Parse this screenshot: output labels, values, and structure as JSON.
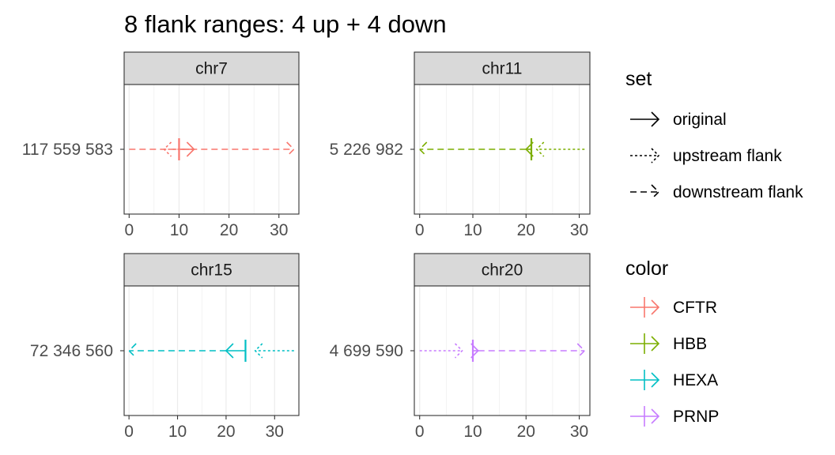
{
  "title": "8 flank ranges: 4 up + 4 down",
  "chart_data": {
    "type": "line",
    "title": "8 flank ranges: 4 up + 4 down",
    "xlabel": "",
    "ylabel": "",
    "x_ticks": [
      0,
      10,
      20,
      30
    ],
    "grid": true,
    "legend_placement": "right",
    "legend_sets": {
      "title": "set",
      "items": [
        {
          "label": "original",
          "linetype": "solid"
        },
        {
          "label": "upstream flank",
          "linetype": "dotted"
        },
        {
          "label": "downstream flank",
          "linetype": "dashed"
        }
      ]
    },
    "legend_colors": {
      "title": "color",
      "items": [
        {
          "label": "CFTR",
          "color": "#F8766D"
        },
        {
          "label": "HBB",
          "color": "#7CAE00"
        },
        {
          "label": "HEXA",
          "color": "#00BFC4"
        },
        {
          "label": "PRNP",
          "color": "#C77CFF"
        }
      ]
    },
    "panels": [
      {
        "strip": "chr7",
        "y_label": "117 559 583",
        "gene": "CFTR",
        "color": "#F8766D",
        "xlim": [
          -1,
          34
        ],
        "segments": [
          {
            "set": "original",
            "start": 10,
            "end": 13
          },
          {
            "set": "upstream flank",
            "start": 13,
            "end": 7
          },
          {
            "set": "downstream flank",
            "start": 0,
            "end": 33
          }
        ]
      },
      {
        "strip": "chr11",
        "y_label": "5 226 982",
        "gene": "HBB",
        "color": "#7CAE00",
        "xlim": [
          -1,
          32
        ],
        "segments": [
          {
            "set": "original",
            "start": 21,
            "end": 20
          },
          {
            "set": "upstream flank",
            "start": 31,
            "end": 22
          },
          {
            "set": "downstream flank",
            "start": 20,
            "end": 0
          }
        ]
      },
      {
        "strip": "chr15",
        "y_label": "72 346 560",
        "gene": "HEXA",
        "color": "#00BFC4",
        "xlim": [
          -1,
          35
        ],
        "segments": [
          {
            "set": "original",
            "start": 24,
            "end": 20
          },
          {
            "set": "upstream flank",
            "start": 34,
            "end": 26
          },
          {
            "set": "downstream flank",
            "start": 20,
            "end": 0
          }
        ]
      },
      {
        "strip": "chr20",
        "y_label": "4 699 590",
        "gene": "PRNP",
        "color": "#C77CFF",
        "xlim": [
          -1,
          32
        ],
        "segments": [
          {
            "set": "original",
            "start": 10,
            "end": 11
          },
          {
            "set": "upstream flank",
            "start": 0,
            "end": 8
          },
          {
            "set": "downstream flank",
            "start": 11,
            "end": 31
          }
        ]
      }
    ]
  }
}
